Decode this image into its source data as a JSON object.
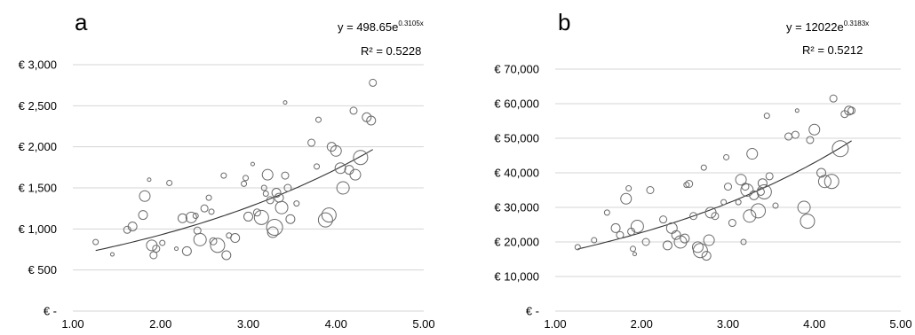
{
  "chart_data": [
    {
      "type": "scatter",
      "panel_label": "a",
      "equation_main": "y = 498.65e",
      "equation_exp": "0.3105x",
      "r2": "R² = 0.5228",
      "trend": {
        "a": 498.65,
        "b": 0.3105
      },
      "xlim": [
        1,
        5
      ],
      "ylim": [
        0,
        3000
      ],
      "x_ticks": [
        "1.00",
        "2.00",
        "3.00",
        "4.00",
        "5.00"
      ],
      "y_ticks": [
        "€ -",
        "€ 500",
        "€ 1,000",
        "€ 1,500",
        "€ 2,000",
        "€ 2,500",
        "€ 3,000"
      ],
      "grid": true,
      "points": [
        {
          "x": 1.26,
          "y": 840,
          "s": 3
        },
        {
          "x": 1.45,
          "y": 690,
          "s": 2
        },
        {
          "x": 1.62,
          "y": 990,
          "s": 4
        },
        {
          "x": 1.68,
          "y": 1030,
          "s": 5
        },
        {
          "x": 1.8,
          "y": 1170,
          "s": 5
        },
        {
          "x": 1.82,
          "y": 1400,
          "s": 6
        },
        {
          "x": 1.87,
          "y": 1600,
          "s": 2
        },
        {
          "x": 1.9,
          "y": 800,
          "s": 6
        },
        {
          "x": 1.92,
          "y": 680,
          "s": 4
        },
        {
          "x": 1.95,
          "y": 760,
          "s": 4
        },
        {
          "x": 2.02,
          "y": 830,
          "s": 3
        },
        {
          "x": 2.1,
          "y": 1560,
          "s": 3
        },
        {
          "x": 2.18,
          "y": 760,
          "s": 2
        },
        {
          "x": 2.25,
          "y": 1130,
          "s": 5
        },
        {
          "x": 2.3,
          "y": 730,
          "s": 5
        },
        {
          "x": 2.35,
          "y": 1140,
          "s": 6
        },
        {
          "x": 2.4,
          "y": 1160,
          "s": 3
        },
        {
          "x": 2.42,
          "y": 980,
          "s": 4
        },
        {
          "x": 2.45,
          "y": 870,
          "s": 7
        },
        {
          "x": 2.5,
          "y": 1250,
          "s": 4
        },
        {
          "x": 2.55,
          "y": 1380,
          "s": 3
        },
        {
          "x": 2.58,
          "y": 1210,
          "s": 3
        },
        {
          "x": 2.6,
          "y": 850,
          "s": 4
        },
        {
          "x": 2.65,
          "y": 800,
          "s": 8
        },
        {
          "x": 2.72,
          "y": 1650,
          "s": 3
        },
        {
          "x": 2.75,
          "y": 680,
          "s": 5
        },
        {
          "x": 2.78,
          "y": 920,
          "s": 3
        },
        {
          "x": 2.85,
          "y": 890,
          "s": 5
        },
        {
          "x": 2.95,
          "y": 1550,
          "s": 3
        },
        {
          "x": 2.97,
          "y": 1620,
          "s": 3
        },
        {
          "x": 3.0,
          "y": 1150,
          "s": 5
        },
        {
          "x": 3.05,
          "y": 1790,
          "s": 2
        },
        {
          "x": 3.1,
          "y": 1200,
          "s": 4
        },
        {
          "x": 3.15,
          "y": 1140,
          "s": 8
        },
        {
          "x": 3.18,
          "y": 1500,
          "s": 3
        },
        {
          "x": 3.2,
          "y": 1430,
          "s": 3
        },
        {
          "x": 3.22,
          "y": 1660,
          "s": 6
        },
        {
          "x": 3.25,
          "y": 1350,
          "s": 4
        },
        {
          "x": 3.28,
          "y": 960,
          "s": 6
        },
        {
          "x": 3.3,
          "y": 1020,
          "s": 9
        },
        {
          "x": 3.32,
          "y": 1440,
          "s": 5
        },
        {
          "x": 3.35,
          "y": 1380,
          "s": 5
        },
        {
          "x": 3.38,
          "y": 1260,
          "s": 7
        },
        {
          "x": 3.42,
          "y": 1650,
          "s": 4
        },
        {
          "x": 3.45,
          "y": 1500,
          "s": 4
        },
        {
          "x": 3.48,
          "y": 1120,
          "s": 5
        },
        {
          "x": 3.42,
          "y": 2540,
          "s": 2
        },
        {
          "x": 3.55,
          "y": 1310,
          "s": 3
        },
        {
          "x": 3.72,
          "y": 2050,
          "s": 4
        },
        {
          "x": 3.78,
          "y": 1760,
          "s": 3
        },
        {
          "x": 3.8,
          "y": 2330,
          "s": 3
        },
        {
          "x": 3.88,
          "y": 1110,
          "s": 8
        },
        {
          "x": 3.92,
          "y": 1170,
          "s": 8
        },
        {
          "x": 3.95,
          "y": 2000,
          "s": 5
        },
        {
          "x": 4.0,
          "y": 1950,
          "s": 6
        },
        {
          "x": 4.05,
          "y": 1740,
          "s": 6
        },
        {
          "x": 4.08,
          "y": 1500,
          "s": 7
        },
        {
          "x": 4.15,
          "y": 1720,
          "s": 5
        },
        {
          "x": 4.2,
          "y": 2440,
          "s": 4
        },
        {
          "x": 4.22,
          "y": 1660,
          "s": 6
        },
        {
          "x": 4.28,
          "y": 1870,
          "s": 8
        },
        {
          "x": 4.35,
          "y": 2360,
          "s": 5
        },
        {
          "x": 4.4,
          "y": 2320,
          "s": 5
        },
        {
          "x": 4.42,
          "y": 2780,
          "s": 4
        }
      ]
    },
    {
      "type": "scatter",
      "panel_label": "b",
      "equation_main": "y = 12022e",
      "equation_exp": "0.3183x",
      "r2": "R² = 0.5212",
      "trend": {
        "a": 12022,
        "b": 0.3183
      },
      "xlim": [
        1,
        5
      ],
      "ylim": [
        0,
        70000
      ],
      "x_ticks": [
        "1.00",
        "2.00",
        "3.00",
        "4.00",
        "5.00"
      ],
      "y_ticks": [
        "€ -",
        "€ 10,000",
        "€ 20,000",
        "€ 30,000",
        "€ 40,000",
        "€ 50,000",
        "€ 60,000",
        "€ 70,000"
      ],
      "grid": true,
      "points": [
        {
          "x": 1.26,
          "y": 18500,
          "s": 3
        },
        {
          "x": 1.45,
          "y": 20500,
          "s": 3
        },
        {
          "x": 1.6,
          "y": 28500,
          "s": 3
        },
        {
          "x": 1.7,
          "y": 24000,
          "s": 5
        },
        {
          "x": 1.75,
          "y": 22000,
          "s": 4
        },
        {
          "x": 1.82,
          "y": 32500,
          "s": 6
        },
        {
          "x": 1.85,
          "y": 35500,
          "s": 3
        },
        {
          "x": 1.88,
          "y": 23000,
          "s": 4
        },
        {
          "x": 1.9,
          "y": 18000,
          "s": 3
        },
        {
          "x": 1.92,
          "y": 16500,
          "s": 2
        },
        {
          "x": 1.95,
          "y": 24500,
          "s": 7
        },
        {
          "x": 2.05,
          "y": 20000,
          "s": 4
        },
        {
          "x": 2.1,
          "y": 35000,
          "s": 4
        },
        {
          "x": 2.25,
          "y": 26500,
          "s": 4
        },
        {
          "x": 2.3,
          "y": 19000,
          "s": 5
        },
        {
          "x": 2.35,
          "y": 24000,
          "s": 6
        },
        {
          "x": 2.4,
          "y": 22000,
          "s": 5
        },
        {
          "x": 2.45,
          "y": 20000,
          "s": 7
        },
        {
          "x": 2.5,
          "y": 21000,
          "s": 5
        },
        {
          "x": 2.52,
          "y": 36500,
          "s": 3
        },
        {
          "x": 2.55,
          "y": 36800,
          "s": 4
        },
        {
          "x": 2.6,
          "y": 27500,
          "s": 4
        },
        {
          "x": 2.65,
          "y": 18500,
          "s": 6
        },
        {
          "x": 2.68,
          "y": 17500,
          "s": 8
        },
        {
          "x": 2.72,
          "y": 41500,
          "s": 3
        },
        {
          "x": 2.75,
          "y": 16000,
          "s": 5
        },
        {
          "x": 2.78,
          "y": 20500,
          "s": 6
        },
        {
          "x": 2.8,
          "y": 28500,
          "s": 6
        },
        {
          "x": 2.85,
          "y": 27500,
          "s": 4
        },
        {
          "x": 2.95,
          "y": 31500,
          "s": 3
        },
        {
          "x": 2.98,
          "y": 44500,
          "s": 3
        },
        {
          "x": 3.0,
          "y": 36000,
          "s": 4
        },
        {
          "x": 3.05,
          "y": 25500,
          "s": 4
        },
        {
          "x": 3.12,
          "y": 31500,
          "s": 3
        },
        {
          "x": 3.15,
          "y": 38000,
          "s": 6
        },
        {
          "x": 3.18,
          "y": 20000,
          "s": 3
        },
        {
          "x": 3.2,
          "y": 36000,
          "s": 4
        },
        {
          "x": 3.22,
          "y": 35000,
          "s": 7
        },
        {
          "x": 3.25,
          "y": 27500,
          "s": 7
        },
        {
          "x": 3.28,
          "y": 45500,
          "s": 6
        },
        {
          "x": 3.3,
          "y": 33500,
          "s": 5
        },
        {
          "x": 3.35,
          "y": 29000,
          "s": 8
        },
        {
          "x": 3.38,
          "y": 34500,
          "s": 4
        },
        {
          "x": 3.4,
          "y": 37000,
          "s": 5
        },
        {
          "x": 3.42,
          "y": 34500,
          "s": 8
        },
        {
          "x": 3.45,
          "y": 56500,
          "s": 3
        },
        {
          "x": 3.48,
          "y": 39000,
          "s": 4
        },
        {
          "x": 3.55,
          "y": 30500,
          "s": 3
        },
        {
          "x": 3.7,
          "y": 50500,
          "s": 4
        },
        {
          "x": 3.78,
          "y": 51000,
          "s": 4
        },
        {
          "x": 3.8,
          "y": 58000,
          "s": 2
        },
        {
          "x": 3.88,
          "y": 30000,
          "s": 7
        },
        {
          "x": 3.92,
          "y": 26000,
          "s": 8
        },
        {
          "x": 3.95,
          "y": 49500,
          "s": 4
        },
        {
          "x": 4.0,
          "y": 52500,
          "s": 6
        },
        {
          "x": 4.08,
          "y": 40000,
          "s": 5
        },
        {
          "x": 4.12,
          "y": 37500,
          "s": 7
        },
        {
          "x": 4.2,
          "y": 37500,
          "s": 8
        },
        {
          "x": 4.22,
          "y": 61500,
          "s": 4
        },
        {
          "x": 4.3,
          "y": 47000,
          "s": 9
        },
        {
          "x": 4.35,
          "y": 57000,
          "s": 4
        },
        {
          "x": 4.4,
          "y": 58000,
          "s": 5
        },
        {
          "x": 4.43,
          "y": 58000,
          "s": 4
        }
      ]
    }
  ]
}
